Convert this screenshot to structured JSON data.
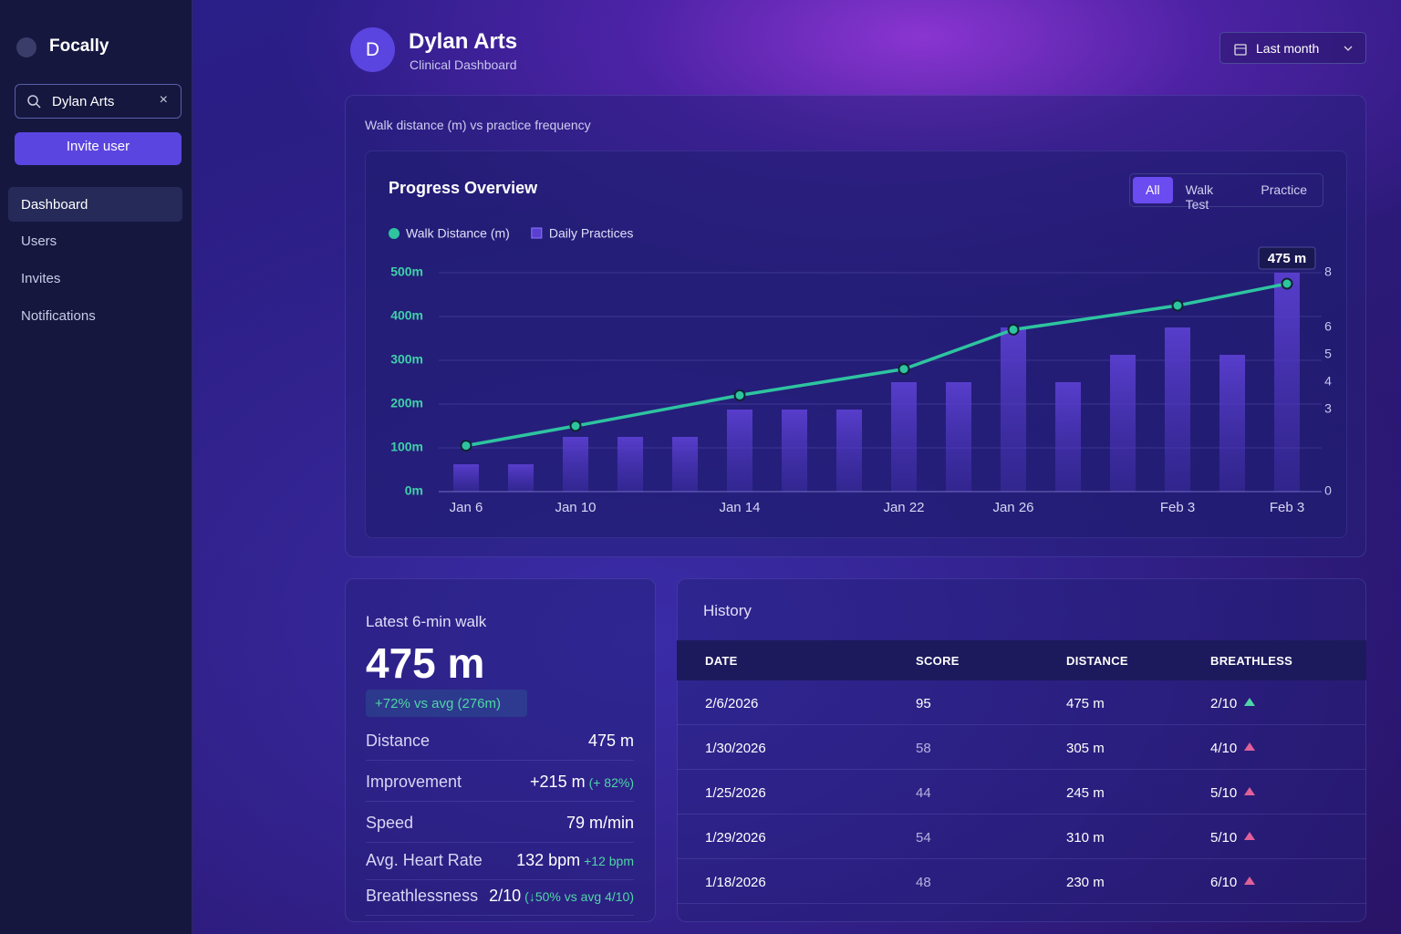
{
  "sidebar": {
    "brand": "Focally",
    "search": "Dylan Arts",
    "invite": "Invite user",
    "nav": [
      "Dashboard",
      "Users",
      "Invites",
      "Notifications"
    ]
  },
  "header": {
    "avatar": "D",
    "name": "Dylan Arts",
    "subtitle": "Clinical Dashboard",
    "range": "Last month"
  },
  "chart_panel": {
    "caption": "Walk distance (m) vs practice frequency",
    "tabs": [
      "All",
      "Walk Test",
      "Practice"
    ]
  },
  "chart_data": {
    "type": "combo",
    "title": "Progress Overview",
    "categories": [
      "Jan 6",
      null,
      "Jan 10",
      null,
      null,
      "Jan 14",
      null,
      null,
      "Jan 22",
      null,
      "Jan 26",
      null,
      null,
      "Feb 3",
      null,
      "Feb 3"
    ],
    "series": [
      {
        "name": "Walk Distance (m)",
        "color": "#2ec4a0",
        "type": "line",
        "values": [
          105,
          null,
          150,
          null,
          null,
          220,
          null,
          null,
          280,
          null,
          370,
          null,
          null,
          425,
          null,
          475
        ],
        "value_labels": [
          null,
          null,
          null,
          null,
          null,
          null,
          null,
          null,
          null,
          null,
          null,
          null,
          null,
          null,
          null,
          "475 m"
        ]
      },
      {
        "name": "Daily Practices",
        "color": "#5a3fd0",
        "type": "bar",
        "axis": "y2",
        "values": [
          1,
          1,
          2,
          2,
          2,
          3,
          3,
          3,
          4,
          4,
          6,
          4,
          5,
          6,
          5,
          8
        ]
      }
    ],
    "ylim": [
      0,
      500
    ],
    "yticks": [
      {
        "value": 0,
        "label": "0m"
      },
      {
        "value": 100,
        "label": "100m"
      },
      {
        "value": 200,
        "label": "200m"
      },
      {
        "value": 300,
        "label": "300m"
      },
      {
        "value": 400,
        "label": "400m"
      },
      {
        "value": 500,
        "label": "500m"
      }
    ],
    "y2lim": [
      0,
      8
    ],
    "y2ticks": [
      0,
      3,
      4,
      5,
      6,
      8
    ],
    "grid": true
  },
  "stats": {
    "title": "Latest 6-min walk",
    "value": "475 m",
    "badge": "+72% vs avg (276m)",
    "rows": [
      {
        "label": "Distance",
        "value": "475 m"
      },
      {
        "label": "Improvement",
        "value": "+215 m",
        "note": "(+ 82%)"
      },
      {
        "label": "Speed",
        "value": "79 m/min"
      },
      {
        "label": "Avg. Heart Rate",
        "value": "132 bpm",
        "note": "+12 bpm"
      },
      {
        "label": "Breathlessness",
        "value": "2/10",
        "note": "(↓50% vs avg 4/10)"
      }
    ]
  },
  "history": {
    "title": "History",
    "columns": [
      "DATE",
      "SCORE",
      "DISTANCE",
      "BREATHLESS"
    ],
    "rows": [
      [
        "2/6/2026",
        95,
        "475 m",
        "2/10"
      ],
      [
        "1/30/2026",
        58,
        "305 m",
        "4/10"
      ],
      [
        "1/25/2026",
        44,
        "245 m",
        "5/10"
      ],
      [
        "1/29/2026",
        54,
        "310 m",
        "5/10"
      ],
      [
        "1/18/2026",
        48,
        "230 m",
        "6/10"
      ]
    ]
  }
}
